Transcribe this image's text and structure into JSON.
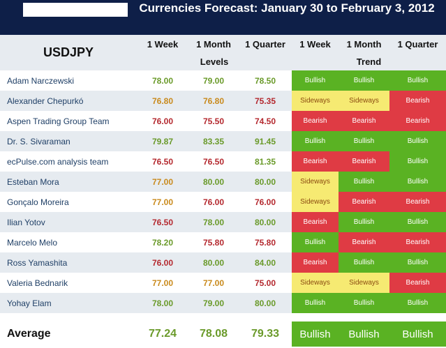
{
  "title": "Currencies Forecast: January 30 to February 3, 2012",
  "pair": "USDJPY",
  "periods": [
    "1 Week",
    "1 Month",
    "1 Quarter"
  ],
  "levels_label": "Levels",
  "trend_label": "Trend",
  "colors": {
    "Bullish": "#5ab223",
    "Bearish": "#df3b44",
    "Sideways": "#f6ea72",
    "level_green": "#6a9a2a",
    "level_orange": "#c98a1c",
    "level_red": "#b4282e"
  },
  "rows": [
    {
      "name": "Adam Narczewski",
      "levels": [
        "78.00",
        "79.00",
        "78.50"
      ],
      "trends": [
        "Bullish",
        "Bullish",
        "Bullish"
      ]
    },
    {
      "name": "Alexander Chepurkó",
      "levels": [
        "76.80",
        "76.80",
        "75.35"
      ],
      "trends": [
        "Sideways",
        "Sideways",
        "Bearish"
      ]
    },
    {
      "name": "Aspen Trading Group Team",
      "levels": [
        "76.00",
        "75.50",
        "74.50"
      ],
      "trends": [
        "Bearish",
        "Bearish",
        "Bearish"
      ]
    },
    {
      "name": "Dr. S. Sivaraman",
      "levels": [
        "79.87",
        "83.35",
        "91.45"
      ],
      "trends": [
        "Bullish",
        "Bullish",
        "Bullish"
      ]
    },
    {
      "name": "ecPulse.com analysis team",
      "levels": [
        "76.50",
        "76.50",
        "81.35"
      ],
      "trends": [
        "Bearish",
        "Bearish",
        "Bullish"
      ]
    },
    {
      "name": "Esteban Mora",
      "levels": [
        "77.00",
        "80.00",
        "80.00"
      ],
      "trends": [
        "Sideways",
        "Bullish",
        "Bullish"
      ]
    },
    {
      "name": "Gonçalo Moreira",
      "levels": [
        "77.00",
        "76.00",
        "76.00"
      ],
      "trends": [
        "Sideways",
        "Bearish",
        "Bearish"
      ]
    },
    {
      "name": "Ilian Yotov",
      "levels": [
        "76.50",
        "78.00",
        "80.00"
      ],
      "trends": [
        "Bearish",
        "Bullish",
        "Bullish"
      ]
    },
    {
      "name": "Marcelo Melo",
      "levels": [
        "78.20",
        "75.80",
        "75.80"
      ],
      "trends": [
        "Bullish",
        "Bearish",
        "Bearish"
      ]
    },
    {
      "name": "Ross Yamashita",
      "levels": [
        "76.00",
        "80.00",
        "84.00"
      ],
      "trends": [
        "Bearish",
        "Bullish",
        "Bullish"
      ]
    },
    {
      "name": "Valeria Bednarik",
      "levels": [
        "77.00",
        "77.00",
        "75.00"
      ],
      "trends": [
        "Sideways",
        "Sideways",
        "Bearish"
      ]
    },
    {
      "name": "Yohay Elam",
      "levels": [
        "78.00",
        "79.00",
        "80.00"
      ],
      "trends": [
        "Bullish",
        "Bullish",
        "Bullish"
      ]
    }
  ],
  "average": {
    "label": "Average",
    "levels": [
      "77.24",
      "78.08",
      "79.33"
    ],
    "trends": [
      "Bullish",
      "Bullish",
      "Bullish"
    ]
  }
}
